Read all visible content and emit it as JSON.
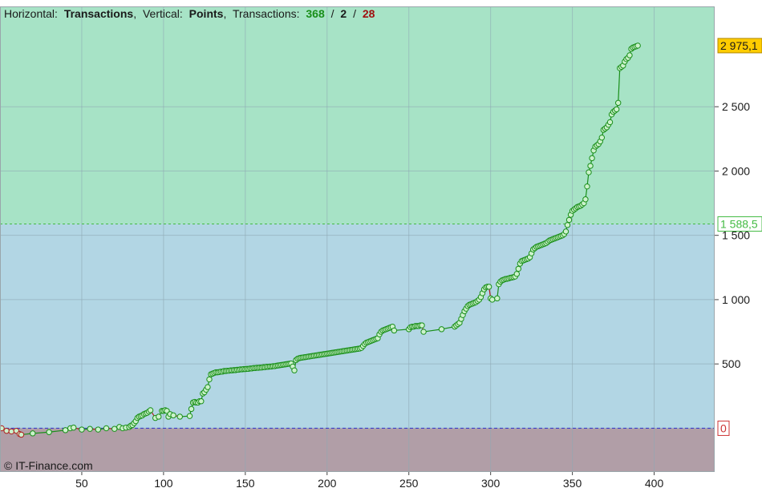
{
  "header": {
    "h_label": "Horizontal:",
    "h_value": "Transactions",
    "v_label": "Vertical:",
    "v_value": "Points",
    "t_label": "Transactions:",
    "t_win": "368",
    "sep1": "/",
    "t_even": "2",
    "sep2": "/",
    "t_loss": "28",
    "sep_comma": ","
  },
  "watermark": "© IT-Finance.com",
  "colors": {
    "profit_zone": "#a7e3c6",
    "band_zone": "#b2d6e4",
    "loss_zone": "#b19ea7",
    "line_up": "#1a8f1a",
    "line_down": "#b02020",
    "marker_fill": "#ccf2cc",
    "marker_stroke": "#1a8f1a",
    "loss_marker_stroke": "#b02020",
    "zero_line": "#3333cc",
    "threshold_line": "#44bb44",
    "last_value_bg": "#ffcc00",
    "threshold_text": "#44bb44",
    "zero_text": "#cc3333"
  },
  "chart_data": {
    "type": "line",
    "xlabel": "",
    "ylabel": "",
    "xlim": [
      0,
      437
    ],
    "ylim": [
      -340,
      3280
    ],
    "x_ticks": [
      "50",
      "100",
      "150",
      "200",
      "250",
      "300",
      "350",
      "400"
    ],
    "y_ticks": [
      "0",
      "500",
      "1 000",
      "1 500",
      "2 000",
      "2 500"
    ],
    "last_value": "2 975,1",
    "threshold_value": "1 588,5",
    "zero_label": "0",
    "grid": true,
    "points": [
      [
        1,
        0
      ],
      [
        4,
        -20
      ],
      [
        7,
        -25
      ],
      [
        10,
        -20
      ],
      [
        12,
        -45
      ],
      [
        13,
        -50
      ],
      [
        20,
        -40
      ],
      [
        30,
        -30
      ],
      [
        40,
        -15
      ],
      [
        43,
        0
      ],
      [
        45,
        5
      ],
      [
        50,
        -10
      ],
      [
        55,
        -5
      ],
      [
        60,
        -10
      ],
      [
        65,
        0
      ],
      [
        70,
        -5
      ],
      [
        73,
        10
      ],
      [
        75,
        0
      ],
      [
        77,
        5
      ],
      [
        79,
        10
      ],
      [
        80,
        20
      ],
      [
        81,
        25
      ],
      [
        82,
        40
      ],
      [
        83,
        55
      ],
      [
        84,
        80
      ],
      [
        85,
        90
      ],
      [
        86,
        95
      ],
      [
        87,
        100
      ],
      [
        88,
        110
      ],
      [
        89,
        115
      ],
      [
        90,
        120
      ],
      [
        91,
        130
      ],
      [
        92,
        140
      ],
      [
        95,
        80
      ],
      [
        97,
        90
      ],
      [
        99,
        135
      ],
      [
        100,
        135
      ],
      [
        101,
        140
      ],
      [
        102,
        135
      ],
      [
        103,
        90
      ],
      [
        104,
        110
      ],
      [
        106,
        100
      ],
      [
        110,
        90
      ],
      [
        116,
        95
      ],
      [
        117,
        150
      ],
      [
        118,
        200
      ],
      [
        119,
        205
      ],
      [
        120,
        200
      ],
      [
        121,
        200
      ],
      [
        122,
        210
      ],
      [
        123,
        210
      ],
      [
        124,
        270
      ],
      [
        125,
        280
      ],
      [
        126,
        300
      ],
      [
        127,
        320
      ],
      [
        128,
        380
      ],
      [
        129,
        420
      ],
      [
        130,
        425
      ],
      [
        131,
        430
      ],
      [
        132,
        435
      ],
      [
        133,
        435
      ],
      [
        134,
        437
      ],
      [
        135,
        440
      ],
      [
        136,
        440
      ],
      [
        137,
        445
      ],
      [
        138,
        445
      ],
      [
        139,
        447
      ],
      [
        140,
        447
      ],
      [
        141,
        450
      ],
      [
        142,
        450
      ],
      [
        143,
        452
      ],
      [
        144,
        452
      ],
      [
        145,
        455
      ],
      [
        146,
        455
      ],
      [
        147,
        458
      ],
      [
        148,
        458
      ],
      [
        149,
        460
      ],
      [
        150,
        460
      ],
      [
        151,
        462
      ],
      [
        152,
        462
      ],
      [
        153,
        465
      ],
      [
        154,
        465
      ],
      [
        155,
        468
      ],
      [
        156,
        468
      ],
      [
        157,
        470
      ],
      [
        158,
        470
      ],
      [
        159,
        472
      ],
      [
        160,
        472
      ],
      [
        161,
        475
      ],
      [
        162,
        475
      ],
      [
        163,
        478
      ],
      [
        164,
        478
      ],
      [
        165,
        480
      ],
      [
        166,
        480
      ],
      [
        167,
        483
      ],
      [
        168,
        483
      ],
      [
        169,
        486
      ],
      [
        170,
        488
      ],
      [
        171,
        490
      ],
      [
        172,
        492
      ],
      [
        173,
        494
      ],
      [
        174,
        496
      ],
      [
        175,
        498
      ],
      [
        176,
        500
      ],
      [
        177,
        502
      ],
      [
        178,
        504
      ],
      [
        179,
        480
      ],
      [
        180,
        450
      ],
      [
        181,
        530
      ],
      [
        182,
        540
      ],
      [
        183,
        545
      ],
      [
        184,
        548
      ],
      [
        185,
        550
      ],
      [
        186,
        552
      ],
      [
        187,
        554
      ],
      [
        188,
        556
      ],
      [
        189,
        558
      ],
      [
        190,
        560
      ],
      [
        191,
        562
      ],
      [
        192,
        564
      ],
      [
        193,
        566
      ],
      [
        194,
        568
      ],
      [
        195,
        570
      ],
      [
        196,
        572
      ],
      [
        197,
        574
      ],
      [
        198,
        576
      ],
      [
        199,
        578
      ],
      [
        200,
        580
      ],
      [
        201,
        582
      ],
      [
        202,
        584
      ],
      [
        203,
        586
      ],
      [
        204,
        588
      ],
      [
        205,
        590
      ],
      [
        206,
        592
      ],
      [
        207,
        594
      ],
      [
        208,
        596
      ],
      [
        209,
        598
      ],
      [
        210,
        600
      ],
      [
        211,
        602
      ],
      [
        212,
        604
      ],
      [
        213,
        606
      ],
      [
        214,
        608
      ],
      [
        215,
        610
      ],
      [
        216,
        612
      ],
      [
        217,
        614
      ],
      [
        218,
        616
      ],
      [
        219,
        618
      ],
      [
        220,
        620
      ],
      [
        221,
        625
      ],
      [
        222,
        640
      ],
      [
        223,
        655
      ],
      [
        224,
        665
      ],
      [
        225,
        670
      ],
      [
        226,
        675
      ],
      [
        227,
        680
      ],
      [
        228,
        685
      ],
      [
        229,
        690
      ],
      [
        230,
        695
      ],
      [
        231,
        700
      ],
      [
        232,
        730
      ],
      [
        233,
        750
      ],
      [
        234,
        760
      ],
      [
        235,
        765
      ],
      [
        236,
        770
      ],
      [
        237,
        775
      ],
      [
        238,
        780
      ],
      [
        239,
        785
      ],
      [
        240,
        790
      ],
      [
        241,
        760
      ],
      [
        250,
        770
      ],
      [
        251,
        785
      ],
      [
        252,
        790
      ],
      [
        253,
        790
      ],
      [
        254,
        795
      ],
      [
        255,
        795
      ],
      [
        256,
        795
      ],
      [
        257,
        800
      ],
      [
        258,
        800
      ],
      [
        259,
        750
      ],
      [
        270,
        770
      ],
      [
        278,
        790
      ],
      [
        279,
        800
      ],
      [
        280,
        810
      ],
      [
        281,
        820
      ],
      [
        282,
        850
      ],
      [
        283,
        880
      ],
      [
        284,
        910
      ],
      [
        285,
        930
      ],
      [
        286,
        950
      ],
      [
        287,
        960
      ],
      [
        288,
        965
      ],
      [
        289,
        970
      ],
      [
        290,
        975
      ],
      [
        291,
        980
      ],
      [
        292,
        990
      ],
      [
        293,
        1000
      ],
      [
        294,
        1020
      ],
      [
        295,
        1050
      ],
      [
        296,
        1080
      ],
      [
        297,
        1095
      ],
      [
        298,
        1100
      ],
      [
        299,
        1100
      ],
      [
        300,
        1010
      ],
      [
        301,
        1000
      ],
      [
        304,
        1010
      ],
      [
        305,
        1120
      ],
      [
        306,
        1140
      ],
      [
        307,
        1150
      ],
      [
        308,
        1155
      ],
      [
        309,
        1160
      ],
      [
        310,
        1162
      ],
      [
        311,
        1165
      ],
      [
        312,
        1170
      ],
      [
        313,
        1172
      ],
      [
        314,
        1175
      ],
      [
        315,
        1180
      ],
      [
        316,
        1200
      ],
      [
        317,
        1240
      ],
      [
        318,
        1280
      ],
      [
        319,
        1300
      ],
      [
        320,
        1305
      ],
      [
        321,
        1310
      ],
      [
        322,
        1315
      ],
      [
        323,
        1320
      ],
      [
        324,
        1330
      ],
      [
        325,
        1360
      ],
      [
        326,
        1390
      ],
      [
        327,
        1400
      ],
      [
        328,
        1410
      ],
      [
        329,
        1415
      ],
      [
        330,
        1420
      ],
      [
        331,
        1425
      ],
      [
        332,
        1430
      ],
      [
        333,
        1435
      ],
      [
        334,
        1440
      ],
      [
        335,
        1450
      ],
      [
        336,
        1460
      ],
      [
        337,
        1465
      ],
      [
        338,
        1470
      ],
      [
        339,
        1475
      ],
      [
        340,
        1480
      ],
      [
        341,
        1485
      ],
      [
        342,
        1490
      ],
      [
        343,
        1495
      ],
      [
        344,
        1500
      ],
      [
        345,
        1510
      ],
      [
        346,
        1530
      ],
      [
        347,
        1580
      ],
      [
        348,
        1620
      ],
      [
        349,
        1660
      ],
      [
        350,
        1690
      ],
      [
        351,
        1700
      ],
      [
        352,
        1710
      ],
      [
        353,
        1720
      ],
      [
        354,
        1725
      ],
      [
        355,
        1730
      ],
      [
        356,
        1740
      ],
      [
        357,
        1750
      ],
      [
        358,
        1780
      ],
      [
        359,
        1880
      ],
      [
        360,
        1990
      ],
      [
        361,
        2040
      ],
      [
        362,
        2100
      ],
      [
        363,
        2160
      ],
      [
        364,
        2190
      ],
      [
        365,
        2200
      ],
      [
        366,
        2210
      ],
      [
        367,
        2230
      ],
      [
        368,
        2260
      ],
      [
        369,
        2320
      ],
      [
        370,
        2330
      ],
      [
        371,
        2340
      ],
      [
        372,
        2360
      ],
      [
        373,
        2380
      ],
      [
        374,
        2440
      ],
      [
        375,
        2460
      ],
      [
        376,
        2470
      ],
      [
        377,
        2480
      ],
      [
        378,
        2530
      ],
      [
        379,
        2800
      ],
      [
        380,
        2810
      ],
      [
        381,
        2820
      ],
      [
        382,
        2850
      ],
      [
        383,
        2870
      ],
      [
        384,
        2880
      ],
      [
        385,
        2900
      ],
      [
        386,
        2950
      ],
      [
        387,
        2960
      ],
      [
        388,
        2965
      ],
      [
        389,
        2970
      ],
      [
        390,
        2975.1
      ]
    ],
    "loss_points": [
      [
        1,
        0
      ],
      [
        4,
        -20
      ],
      [
        7,
        -25
      ],
      [
        10,
        -20
      ],
      [
        12,
        -45
      ],
      [
        13,
        -50
      ]
    ]
  }
}
